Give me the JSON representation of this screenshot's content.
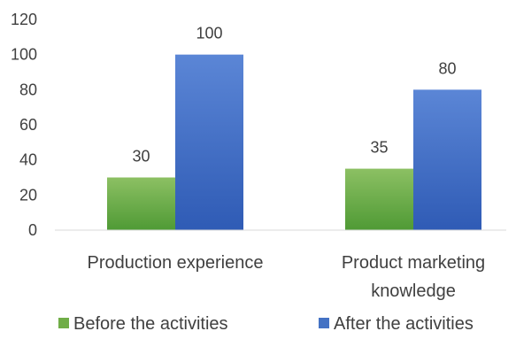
{
  "chart_data": {
    "type": "bar",
    "categories": [
      [
        "Production experience"
      ],
      [
        "Product marketing",
        "knowledge"
      ]
    ],
    "series": [
      {
        "name": "Before the activities",
        "values": [
          30,
          35
        ],
        "color": "#70ad47",
        "color_light": "#8cc063",
        "color_dark": "#4f9a35"
      },
      {
        "name": "After the activities",
        "values": [
          100,
          80
        ],
        "color": "#4472c4",
        "color_light": "#5b86d6",
        "color_dark": "#2f5bb5"
      }
    ],
    "yticks": [
      0,
      20,
      40,
      60,
      80,
      100,
      120
    ],
    "ylim": [
      0,
      120
    ],
    "grid": false,
    "data_labels": true,
    "legend_position": "bottom",
    "title": "",
    "xlabel": "",
    "ylabel": ""
  }
}
